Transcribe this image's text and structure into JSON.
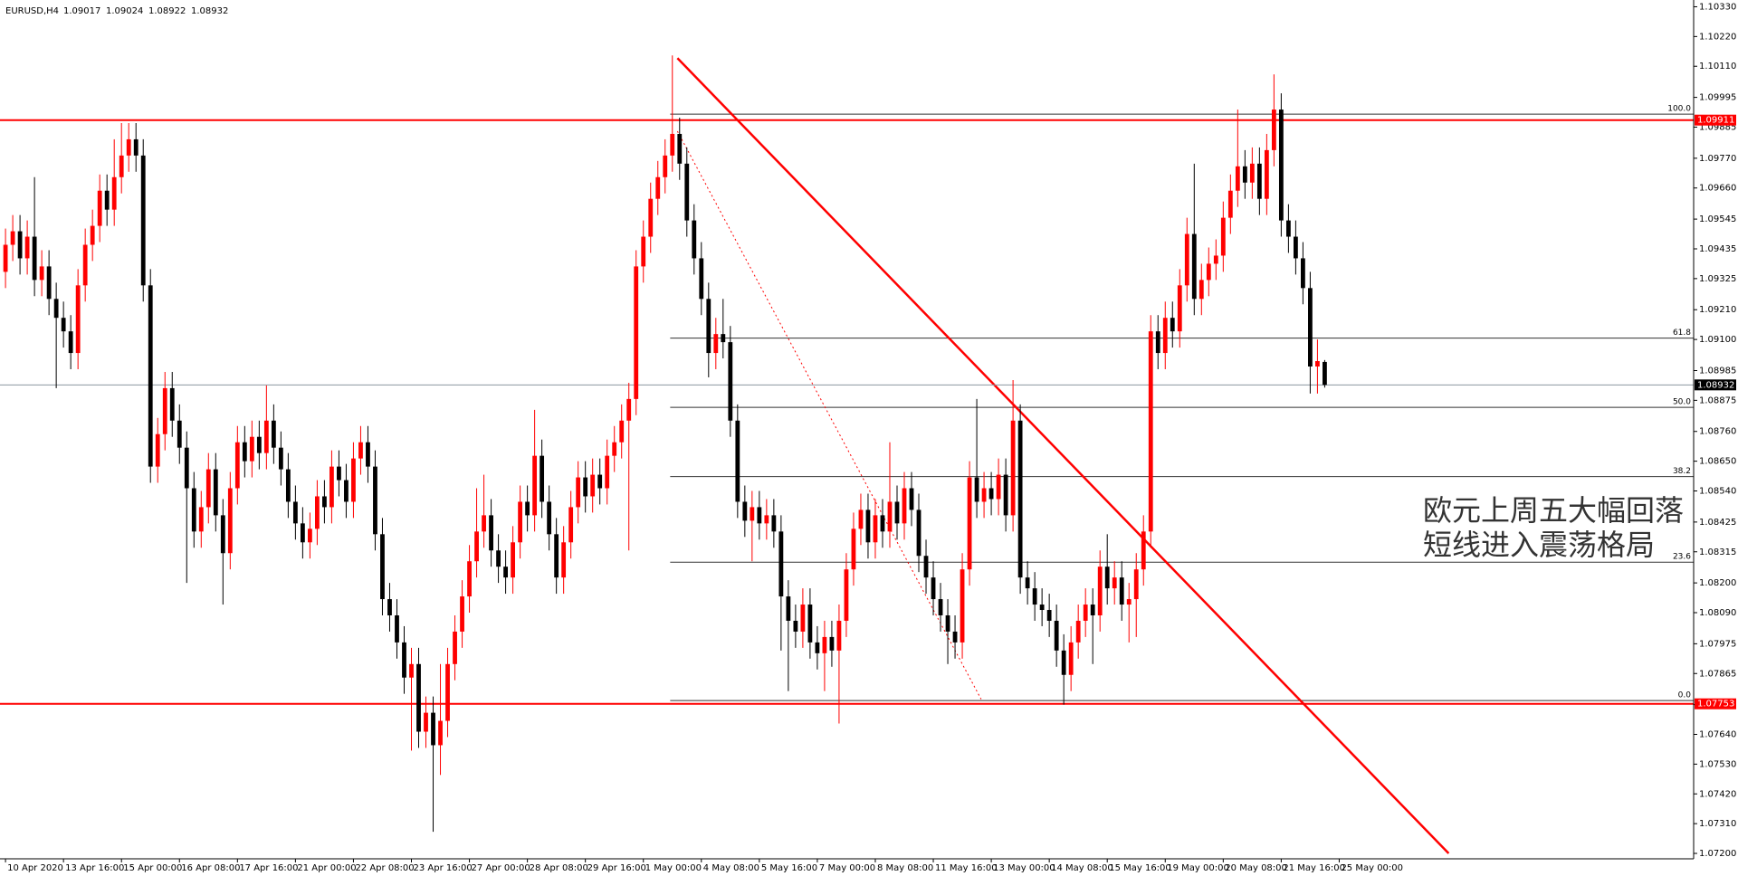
{
  "chart_data": {
    "type": "candlestick",
    "symbol": "EURUSD,H4",
    "up_color": "#ff0000",
    "down_color": "#000000",
    "grid": true,
    "xlim": [
      -0.76,
      232.9
    ],
    "ylim": [
      1.0718,
      1.10355
    ],
    "xticks": [
      {
        "value": 0,
        "label": "10 Apr 2020"
      },
      {
        "value": 8,
        "label": "13 Apr 16:00"
      },
      {
        "value": 16,
        "label": "15 Apr 00:00"
      },
      {
        "value": 24,
        "label": "16 Apr 08:00"
      },
      {
        "value": 32,
        "label": "17 Apr 16:00"
      },
      {
        "value": 40,
        "label": "21 Apr 00:00"
      },
      {
        "value": 48,
        "label": "22 Apr 08:00"
      },
      {
        "value": 56,
        "label": "23 Apr 16:00"
      },
      {
        "value": 64,
        "label": "27 Apr 00:00"
      },
      {
        "value": 72,
        "label": "28 Apr 08:00"
      },
      {
        "value": 80,
        "label": "29 Apr 16:00"
      },
      {
        "value": 88,
        "label": "1 May 00:00"
      },
      {
        "value": 96,
        "label": "4 May 08:00"
      },
      {
        "value": 104,
        "label": "5 May 16:00"
      },
      {
        "value": 112,
        "label": "7 May 00:00"
      },
      {
        "value": 120,
        "label": "8 May 08:00"
      },
      {
        "value": 128,
        "label": "11 May 16:00"
      },
      {
        "value": 136,
        "label": "13 May 00:00"
      },
      {
        "value": 144,
        "label": "14 May 08:00"
      },
      {
        "value": 152,
        "label": "15 May 16:00"
      },
      {
        "value": 160,
        "label": "19 May 00:00"
      },
      {
        "value": 168,
        "label": "20 May 08:00"
      },
      {
        "value": 176,
        "label": "21 May 16:00"
      },
      {
        "value": 184,
        "label": "25 May 00:00"
      }
    ],
    "yticks": [
      {
        "value": 1.1033,
        "label": "1.10330"
      },
      {
        "value": 1.1022,
        "label": "1.10220"
      },
      {
        "value": 1.1011,
        "label": "1.10110"
      },
      {
        "value": 1.09995,
        "label": "1.09995"
      },
      {
        "value": 1.09885,
        "label": "1.09885"
      },
      {
        "value": 1.0977,
        "label": "1.09770"
      },
      {
        "value": 1.0966,
        "label": "1.09660"
      },
      {
        "value": 1.09545,
        "label": "1.09545"
      },
      {
        "value": 1.09435,
        "label": "1.09435"
      },
      {
        "value": 1.09325,
        "label": "1.09325"
      },
      {
        "value": 1.0921,
        "label": "1.09210"
      },
      {
        "value": 1.091,
        "label": "1.09100"
      },
      {
        "value": 1.08985,
        "label": "1.08985"
      },
      {
        "value": 1.08875,
        "label": "1.08875"
      },
      {
        "value": 1.0876,
        "label": "1.08760"
      },
      {
        "value": 1.0865,
        "label": "1.08650"
      },
      {
        "value": 1.0854,
        "label": "1.08540"
      },
      {
        "value": 1.08425,
        "label": "1.08425"
      },
      {
        "value": 1.08315,
        "label": "1.08315"
      },
      {
        "value": 1.082,
        "label": "1.08200"
      },
      {
        "value": 1.0809,
        "label": "1.08090"
      },
      {
        "value": 1.07975,
        "label": "1.07975"
      },
      {
        "value": 1.07865,
        "label": "1.07865"
      },
      {
        "value": 1.0775,
        "label": "1.07750"
      },
      {
        "value": 1.0764,
        "label": "1.07640"
      },
      {
        "value": 1.0753,
        "label": "1.07530"
      },
      {
        "value": 1.0742,
        "label": "1.07420"
      },
      {
        "value": 1.0731,
        "label": "1.07310"
      },
      {
        "value": 1.072,
        "label": "1.07200"
      }
    ],
    "hlines": [
      {
        "value": 1.09911,
        "color": "#ff0000"
      },
      {
        "value": 1.07753,
        "color": "#ff0000"
      }
    ],
    "current_line_color": "#8c96a0",
    "fibonacci": {
      "x0": 91.7,
      "high": 1.09933,
      "low": 1.07765,
      "color": "#333333",
      "levels": [
        {
          "value": 100,
          "label": "100.0"
        },
        {
          "value": 61.8,
          "label": "61.8"
        },
        {
          "value": 50,
          "label": "50.0"
        },
        {
          "value": 38.2,
          "label": "38.2"
        },
        {
          "value": 23.6,
          "label": "23.6"
        },
        {
          "value": 0,
          "label": "0.0"
        }
      ]
    },
    "trendlines": [
      {
        "x": [
          92.7,
          199.1
        ],
        "y": [
          1.1014,
          1.072
        ],
        "color": "#ff0000",
        "style": "solid"
      },
      {
        "x": [
          92.7,
          134.6
        ],
        "y": [
          1.0987,
          1.0777
        ],
        "color": "#ff0000",
        "style": "dotted"
      }
    ],
    "annotation": [
      "欧元上周五大幅回落",
      "短线进入震荡格局"
    ],
    "ohlc": [
      [
        1.0935,
        1.0951,
        1.0929,
        1.0945
      ],
      [
        1.0945,
        1.0956,
        1.0939,
        1.095
      ],
      [
        1.095,
        1.0956,
        1.0934,
        1.094
      ],
      [
        1.094,
        1.0954,
        1.0934,
        1.0948
      ],
      [
        1.0948,
        1.097,
        1.0926,
        1.0932
      ],
      [
        1.0932,
        1.0943,
        1.0926,
        1.0937
      ],
      [
        1.0937,
        1.0943,
        1.0919,
        1.0925
      ],
      [
        1.0925,
        1.0931,
        1.0892,
        1.0918
      ],
      [
        1.0918,
        1.0924,
        1.0907,
        1.0913
      ],
      [
        1.0913,
        1.0919,
        1.0899,
        1.0905
      ],
      [
        1.0905,
        1.0936,
        1.0899,
        1.093
      ],
      [
        1.093,
        1.0951,
        1.0924,
        1.0945
      ],
      [
        1.0945,
        1.0958,
        1.0939,
        1.0952
      ],
      [
        1.0952,
        1.0971,
        1.0946,
        1.0965
      ],
      [
        1.0965,
        1.0971,
        1.0952,
        1.0958
      ],
      [
        1.0958,
        1.0984,
        1.0952,
        1.097
      ],
      [
        1.097,
        1.099,
        1.0964,
        1.0978
      ],
      [
        1.0978,
        1.099,
        1.0972,
        1.0984
      ],
      [
        1.0984,
        1.099,
        1.0972,
        1.0978
      ],
      [
        1.0978,
        1.0984,
        1.0924,
        1.093
      ],
      [
        1.093,
        1.0936,
        1.0857,
        1.0863
      ],
      [
        1.0863,
        1.0881,
        1.0857,
        1.0875
      ],
      [
        1.0875,
        1.0898,
        1.0869,
        1.0892
      ],
      [
        1.0892,
        1.0898,
        1.0874,
        1.088
      ],
      [
        1.088,
        1.0886,
        1.0864,
        1.087
      ],
      [
        1.087,
        1.0876,
        1.082,
        1.0855
      ],
      [
        1.0855,
        1.0861,
        1.0833,
        1.0839
      ],
      [
        1.0839,
        1.0854,
        1.0833,
        1.0848
      ],
      [
        1.0848,
        1.0868,
        1.0842,
        1.0862
      ],
      [
        1.0862,
        1.0868,
        1.0839,
        1.0845
      ],
      [
        1.0845,
        1.0851,
        1.0812,
        1.0831
      ],
      [
        1.0831,
        1.0861,
        1.0825,
        1.0855
      ],
      [
        1.0855,
        1.0878,
        1.0849,
        1.0872
      ],
      [
        1.0872,
        1.0878,
        1.0859,
        1.0865
      ],
      [
        1.0865,
        1.088,
        1.0859,
        1.0874
      ],
      [
        1.0874,
        1.088,
        1.0862,
        1.0868
      ],
      [
        1.0868,
        1.0893,
        1.0862,
        1.088
      ],
      [
        1.088,
        1.0886,
        1.0864,
        1.087
      ],
      [
        1.087,
        1.0876,
        1.0856,
        1.0862
      ],
      [
        1.0862,
        1.0868,
        1.0844,
        1.085
      ],
      [
        1.085,
        1.0856,
        1.0836,
        1.0842
      ],
      [
        1.0842,
        1.0848,
        1.0829,
        1.0835
      ],
      [
        1.0835,
        1.0846,
        1.0829,
        1.084
      ],
      [
        1.084,
        1.0858,
        1.0834,
        1.0852
      ],
      [
        1.0852,
        1.0858,
        1.0842,
        1.0848
      ],
      [
        1.0848,
        1.0869,
        1.0842,
        1.0863
      ],
      [
        1.0863,
        1.0869,
        1.0852,
        1.0858
      ],
      [
        1.0858,
        1.0864,
        1.0844,
        1.085
      ],
      [
        1.085,
        1.0872,
        1.0844,
        1.0866
      ],
      [
        1.0866,
        1.0878,
        1.086,
        1.0872
      ],
      [
        1.0872,
        1.0878,
        1.0857,
        1.0863
      ],
      [
        1.0863,
        1.0869,
        1.0832,
        1.0838
      ],
      [
        1.0838,
        1.0844,
        1.0808,
        1.0814
      ],
      [
        1.0814,
        1.082,
        1.0802,
        1.0808
      ],
      [
        1.0808,
        1.0814,
        1.0792,
        1.0798
      ],
      [
        1.0798,
        1.0804,
        1.0779,
        1.0785
      ],
      [
        1.0785,
        1.0796,
        1.0758,
        1.079
      ],
      [
        1.079,
        1.0796,
        1.0759,
        1.0765
      ],
      [
        1.0765,
        1.0778,
        1.0759,
        1.0772
      ],
      [
        1.0772,
        1.0778,
        1.0728,
        1.076
      ],
      [
        1.076,
        1.079,
        1.0749,
        1.0769
      ],
      [
        1.0769,
        1.0796,
        1.0763,
        1.079
      ],
      [
        1.079,
        1.0808,
        1.0784,
        1.0802
      ],
      [
        1.0802,
        1.0821,
        1.0796,
        1.0815
      ],
      [
        1.0815,
        1.0834,
        1.0809,
        1.0828
      ],
      [
        1.0828,
        1.0855,
        1.0822,
        1.0839
      ],
      [
        1.0839,
        1.086,
        1.0833,
        1.0845
      ],
      [
        1.0845,
        1.0851,
        1.0826,
        1.0832
      ],
      [
        1.0832,
        1.0838,
        1.082,
        1.0826
      ],
      [
        1.0826,
        1.0832,
        1.0816,
        1.0822
      ],
      [
        1.0822,
        1.0841,
        1.0816,
        1.0835
      ],
      [
        1.0835,
        1.0856,
        1.0829,
        1.085
      ],
      [
        1.085,
        1.0856,
        1.0839,
        1.0845
      ],
      [
        1.0845,
        1.0884,
        1.0839,
        1.0867
      ],
      [
        1.0867,
        1.0873,
        1.0844,
        1.085
      ],
      [
        1.085,
        1.0856,
        1.0832,
        1.0838
      ],
      [
        1.0838,
        1.0844,
        1.0816,
        1.0822
      ],
      [
        1.0822,
        1.0841,
        1.0816,
        1.0835
      ],
      [
        1.0835,
        1.0854,
        1.0829,
        1.0848
      ],
      [
        1.0848,
        1.0865,
        1.0842,
        1.0859
      ],
      [
        1.0859,
        1.0865,
        1.0846,
        1.0852
      ],
      [
        1.0852,
        1.0866,
        1.0846,
        1.086
      ],
      [
        1.086,
        1.0866,
        1.0849,
        1.0855
      ],
      [
        1.0855,
        1.0873,
        1.0849,
        1.0867
      ],
      [
        1.0867,
        1.0878,
        1.0861,
        1.0872
      ],
      [
        1.0872,
        1.0886,
        1.0866,
        1.088
      ],
      [
        1.088,
        1.0894,
        1.0832,
        1.0888
      ],
      [
        1.0888,
        1.0943,
        1.0882,
        1.0937
      ],
      [
        1.0937,
        1.0954,
        1.0931,
        1.0948
      ],
      [
        1.0948,
        1.0968,
        1.0942,
        1.0962
      ],
      [
        1.0962,
        1.0976,
        1.0956,
        1.097
      ],
      [
        1.097,
        1.0984,
        1.0964,
        1.0978
      ],
      [
        1.0978,
        1.1015,
        1.0972,
        1.0986
      ],
      [
        1.0986,
        1.0992,
        1.0969,
        1.0975
      ],
      [
        1.0975,
        1.0981,
        1.0948,
        1.0954
      ],
      [
        1.0954,
        1.096,
        1.0934,
        1.094
      ],
      [
        1.094,
        1.0946,
        1.0919,
        1.0925
      ],
      [
        1.0925,
        1.0931,
        1.0896,
        1.0905
      ],
      [
        1.0905,
        1.0918,
        1.0899,
        1.0912
      ],
      [
        1.0912,
        1.0925,
        1.0903,
        1.0909
      ],
      [
        1.0909,
        1.0915,
        1.0874,
        1.088
      ],
      [
        1.088,
        1.0886,
        1.0844,
        1.085
      ],
      [
        1.085,
        1.0856,
        1.0837,
        1.0843
      ],
      [
        1.0843,
        1.0854,
        1.0828,
        1.0848
      ],
      [
        1.0848,
        1.0854,
        1.0836,
        1.0842
      ],
      [
        1.0842,
        1.0851,
        1.0836,
        1.0845
      ],
      [
        1.0845,
        1.0851,
        1.0833,
        1.0839
      ],
      [
        1.0839,
        1.0845,
        1.0795,
        1.0815
      ],
      [
        1.0815,
        1.0821,
        1.078,
        1.0806
      ],
      [
        1.0806,
        1.0812,
        1.0796,
        1.0802
      ],
      [
        1.0802,
        1.0818,
        1.0796,
        1.0812
      ],
      [
        1.0812,
        1.0818,
        1.0792,
        1.0798
      ],
      [
        1.0798,
        1.0804,
        1.0788,
        1.0794
      ],
      [
        1.0794,
        1.0806,
        1.078,
        1.08
      ],
      [
        1.08,
        1.0806,
        1.0789,
        1.0795
      ],
      [
        1.0795,
        1.0812,
        1.0768,
        1.0806
      ],
      [
        1.0806,
        1.0831,
        1.08,
        1.0825
      ],
      [
        1.0825,
        1.0846,
        1.0819,
        1.084
      ],
      [
        1.084,
        1.0853,
        1.0834,
        1.0847
      ],
      [
        1.0847,
        1.0853,
        1.0829,
        1.0835
      ],
      [
        1.0835,
        1.0851,
        1.0829,
        1.0845
      ],
      [
        1.0845,
        1.0851,
        1.0833,
        1.0839
      ],
      [
        1.0839,
        1.0872,
        1.0833,
        1.085
      ],
      [
        1.085,
        1.0856,
        1.0836,
        1.0842
      ],
      [
        1.0842,
        1.0861,
        1.0836,
        1.0855
      ],
      [
        1.0855,
        1.0861,
        1.0841,
        1.0847
      ],
      [
        1.0847,
        1.0853,
        1.0824,
        1.083
      ],
      [
        1.083,
        1.0836,
        1.0816,
        1.0822
      ],
      [
        1.0822,
        1.0828,
        1.0808,
        1.0814
      ],
      [
        1.0814,
        1.082,
        1.0802,
        1.0808
      ],
      [
        1.0808,
        1.0814,
        1.079,
        1.0802
      ],
      [
        1.0802,
        1.0808,
        1.0792,
        1.0798
      ],
      [
        1.0798,
        1.0831,
        1.0792,
        1.0825
      ],
      [
        1.0825,
        1.0865,
        1.0819,
        1.0859
      ],
      [
        1.0859,
        1.0888,
        1.0844,
        1.085
      ],
      [
        1.085,
        1.0861,
        1.0844,
        1.0855
      ],
      [
        1.0855,
        1.0861,
        1.0845,
        1.0851
      ],
      [
        1.0851,
        1.0866,
        1.0845,
        1.086
      ],
      [
        1.086,
        1.0866,
        1.0839,
        1.0845
      ],
      [
        1.0845,
        1.0895,
        1.0839,
        1.088
      ],
      [
        1.088,
        1.0886,
        1.0816,
        1.0822
      ],
      [
        1.0822,
        1.0828,
        1.0812,
        1.0818
      ],
      [
        1.0818,
        1.0824,
        1.0806,
        1.0812
      ],
      [
        1.0812,
        1.0818,
        1.0804,
        1.081
      ],
      [
        1.081,
        1.0816,
        1.08,
        1.0806
      ],
      [
        1.0806,
        1.0812,
        1.0789,
        1.0795
      ],
      [
        1.0795,
        1.0801,
        1.0775,
        1.0786
      ],
      [
        1.0786,
        1.0804,
        1.078,
        1.0798
      ],
      [
        1.0798,
        1.0812,
        1.0792,
        1.0806
      ],
      [
        1.0806,
        1.0818,
        1.08,
        1.0812
      ],
      [
        1.0812,
        1.0818,
        1.079,
        1.0808
      ],
      [
        1.0808,
        1.0832,
        1.0802,
        1.0826
      ],
      [
        1.0826,
        1.0838,
        1.0812,
        1.0818
      ],
      [
        1.0818,
        1.0828,
        1.0812,
        1.0822
      ],
      [
        1.0822,
        1.0828,
        1.0806,
        1.0812
      ],
      [
        1.0812,
        1.082,
        1.0798,
        1.0814
      ],
      [
        1.0814,
        1.0831,
        1.08,
        1.0825
      ],
      [
        1.0825,
        1.0845,
        1.0819,
        1.0839
      ],
      [
        1.0839,
        1.0919,
        1.0833,
        1.0913
      ],
      [
        1.0913,
        1.0919,
        1.0899,
        1.0905
      ],
      [
        1.0905,
        1.0924,
        1.0899,
        1.0918
      ],
      [
        1.0918,
        1.0924,
        1.0907,
        1.0913
      ],
      [
        1.0913,
        1.0936,
        1.0907,
        1.093
      ],
      [
        1.093,
        1.0955,
        1.0924,
        1.0949
      ],
      [
        1.0949,
        1.0975,
        1.0919,
        1.0925
      ],
      [
        1.0925,
        1.0938,
        1.0919,
        1.0932
      ],
      [
        1.0932,
        1.0944,
        1.0926,
        1.0938
      ],
      [
        1.0938,
        1.0947,
        1.0932,
        1.0941
      ],
      [
        1.0941,
        1.0961,
        1.0935,
        1.0955
      ],
      [
        1.0955,
        1.0971,
        1.0949,
        1.0965
      ],
      [
        1.0965,
        1.0995,
        1.0959,
        1.0974
      ],
      [
        1.0974,
        1.098,
        1.0962,
        1.0968
      ],
      [
        1.0968,
        1.0981,
        1.0962,
        1.0975
      ],
      [
        1.0975,
        1.0981,
        1.0956,
        1.0962
      ],
      [
        1.0962,
        1.0986,
        1.0956,
        1.098
      ],
      [
        1.098,
        1.1008,
        1.0974,
        1.0995
      ],
      [
        1.0995,
        1.1001,
        1.0948,
        1.0954
      ],
      [
        1.0954,
        1.096,
        1.0942,
        1.0948
      ],
      [
        1.0948,
        1.0954,
        1.0934,
        1.094
      ],
      [
        1.094,
        1.0946,
        1.0923,
        1.0929
      ],
      [
        1.0929,
        1.0935,
        1.089,
        1.09
      ],
      [
        1.09,
        1.091,
        1.089,
        1.0902
      ],
      [
        1.09017,
        1.09024,
        1.08922,
        1.08932
      ]
    ]
  }
}
